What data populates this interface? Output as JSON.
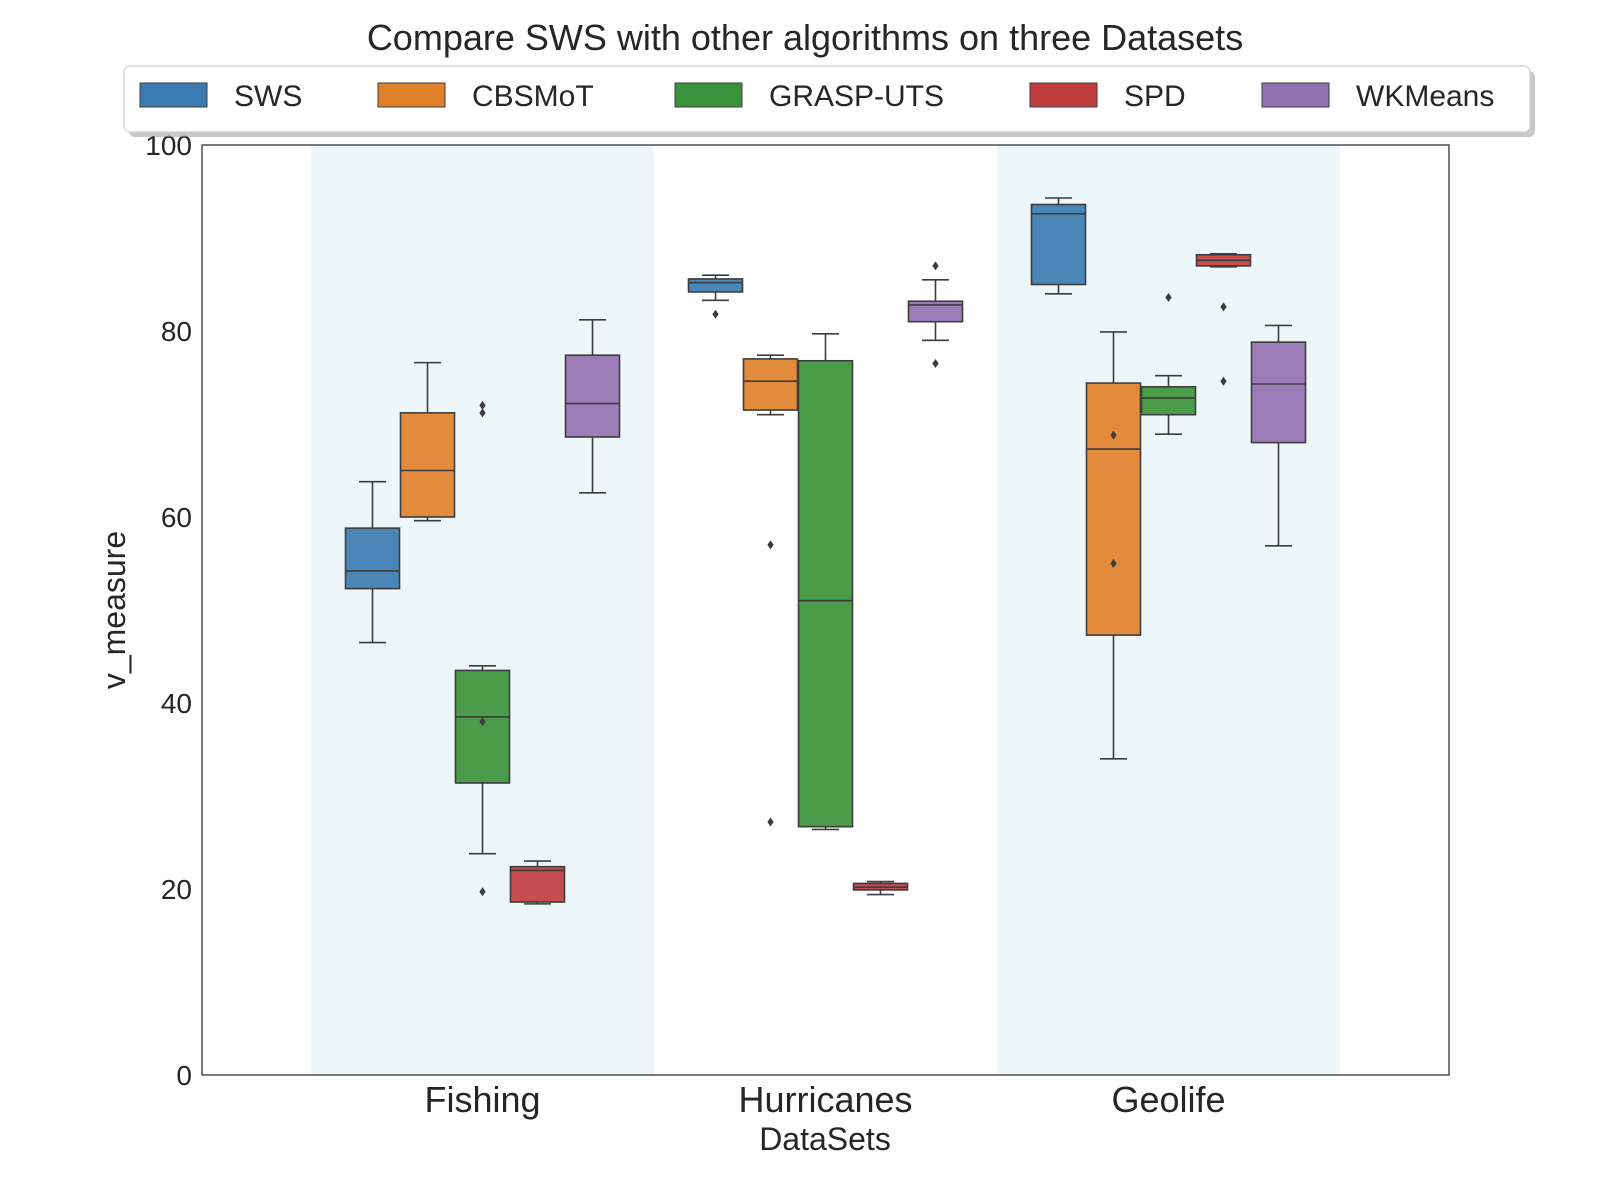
{
  "chart_data": {
    "type": "box",
    "title": "Compare SWS with other algorithms on three Datasets",
    "xlabel": "DataSets",
    "ylabel": "v_measure",
    "ylim": [
      0,
      100
    ],
    "yticks": [
      0,
      20,
      40,
      60,
      80,
      100
    ],
    "categories": [
      "Fishing",
      "Hurricanes",
      "Geolife"
    ],
    "legend_position": "top-center",
    "grid": false,
    "series": [
      {
        "name": "SWS",
        "color": "#3a7cb2",
        "boxes": [
          {
            "whislo": 46.5,
            "q1": 52.3,
            "med": 54.2,
            "q3": 58.8,
            "whishi": 63.8,
            "fliers": []
          },
          {
            "whislo": 83.3,
            "q1": 84.2,
            "med": 85.2,
            "q3": 85.6,
            "whishi": 86.0,
            "fliers": [
              81.8
            ]
          },
          {
            "whislo": 84.0,
            "q1": 85.0,
            "med": 92.6,
            "q3": 93.6,
            "whishi": 94.3,
            "fliers": []
          }
        ]
      },
      {
        "name": "CBSMoT",
        "color": "#e1812c",
        "boxes": [
          {
            "whislo": 59.6,
            "q1": 60.0,
            "med": 65.0,
            "q3": 71.2,
            "whishi": 76.6,
            "fliers": []
          },
          {
            "whislo": 71.0,
            "q1": 71.5,
            "med": 74.6,
            "q3": 77.0,
            "whishi": 77.4,
            "fliers": [
              57.0,
              27.2
            ]
          },
          {
            "whislo": 34.0,
            "q1": 47.3,
            "med": 67.3,
            "q3": 74.4,
            "whishi": 79.9,
            "fliers": [
              68.8,
              55.0
            ]
          }
        ]
      },
      {
        "name": "GRASP-UTS",
        "color": "#3a923a",
        "boxes": [
          {
            "whislo": 23.8,
            "q1": 31.4,
            "med": 38.5,
            "q3": 43.5,
            "whishi": 44.0,
            "fliers": [
              38.0,
              19.7,
              72.0,
              71.2
            ]
          },
          {
            "whislo": 26.4,
            "q1": 26.7,
            "med": 51.0,
            "q3": 76.8,
            "whishi": 79.7,
            "fliers": []
          },
          {
            "whislo": 68.9,
            "q1": 71.0,
            "med": 72.8,
            "q3": 74.0,
            "whishi": 75.2,
            "fliers": [
              83.6
            ]
          }
        ]
      },
      {
        "name": "SPD",
        "color": "#c03d3e",
        "boxes": [
          {
            "whislo": 18.4,
            "q1": 18.6,
            "med": 22.0,
            "q3": 22.4,
            "whishi": 23.0,
            "fliers": []
          },
          {
            "whislo": 19.4,
            "q1": 19.9,
            "med": 20.2,
            "q3": 20.6,
            "whishi": 20.8,
            "fliers": []
          },
          {
            "whislo": 86.9,
            "q1": 87.0,
            "med": 87.6,
            "q3": 88.2,
            "whishi": 88.3,
            "fliers": [
              82.6,
              74.6
            ]
          }
        ]
      },
      {
        "name": "WKMeans",
        "color": "#9372b2",
        "boxes": [
          {
            "whislo": 62.6,
            "q1": 68.6,
            "med": 72.2,
            "q3": 77.4,
            "whishi": 81.2,
            "fliers": []
          },
          {
            "whislo": 79.0,
            "q1": 81.0,
            "med": 82.8,
            "q3": 83.2,
            "whishi": 85.5,
            "fliers": [
              87.0,
              76.5
            ]
          },
          {
            "whislo": 56.9,
            "q1": 68.0,
            "med": 74.3,
            "q3": 78.8,
            "whishi": 80.6,
            "fliers": []
          }
        ]
      }
    ]
  }
}
